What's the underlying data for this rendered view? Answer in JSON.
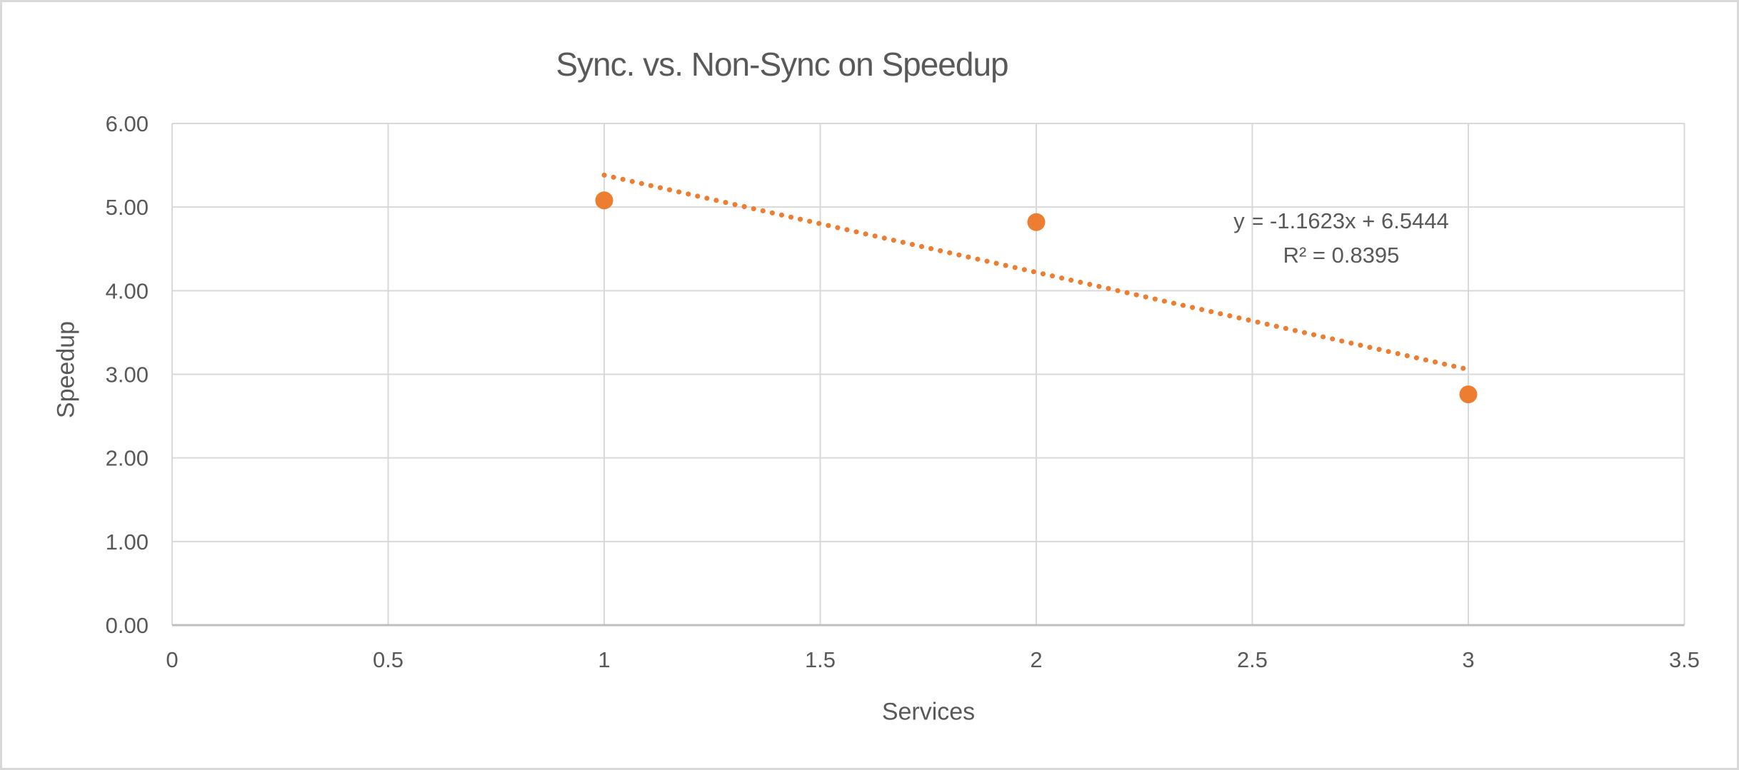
{
  "chart_data": {
    "type": "scatter",
    "title": "Sync. vs. Non-Sync on Speedup",
    "xlabel": "Services",
    "ylabel": "Speedup",
    "xlim": [
      0,
      3.5
    ],
    "ylim": [
      0,
      6
    ],
    "x_tick_values": [
      0,
      0.5,
      1,
      1.5,
      2,
      2.5,
      3,
      3.5
    ],
    "x_tick_labels": [
      "0",
      "0.5",
      "1",
      "1.5",
      "2",
      "2.5",
      "3",
      "3.5"
    ],
    "y_tick_values": [
      0,
      1,
      2,
      3,
      4,
      5,
      6
    ],
    "y_tick_labels": [
      "0.00",
      "1.00",
      "2.00",
      "3.00",
      "4.00",
      "5.00",
      "6.00"
    ],
    "grid": true,
    "legend": "none",
    "series": [
      {
        "name": "Speedup",
        "marker": "circle",
        "color": "#ED7D31",
        "points": [
          {
            "x": 1,
            "y": 5.08
          },
          {
            "x": 2,
            "y": 4.82
          },
          {
            "x": 3,
            "y": 2.76
          }
        ]
      }
    ],
    "trendline": {
      "style": "dotted",
      "color": "#ED7D31",
      "slope": -1.1623,
      "intercept": 6.5444,
      "x_start": 1,
      "x_end": 3,
      "equation_label": "y = -1.1623x + 6.5444",
      "r_squared_label": "R² = 0.8395"
    },
    "colors": {
      "accent_orange": "#ED7D31",
      "text_gray": "#595959",
      "gridline": "#D9D9D9",
      "axis_line": "#BFBFBF",
      "chart_border": "#D9D9D9",
      "background": "#FFFFFF"
    }
  }
}
